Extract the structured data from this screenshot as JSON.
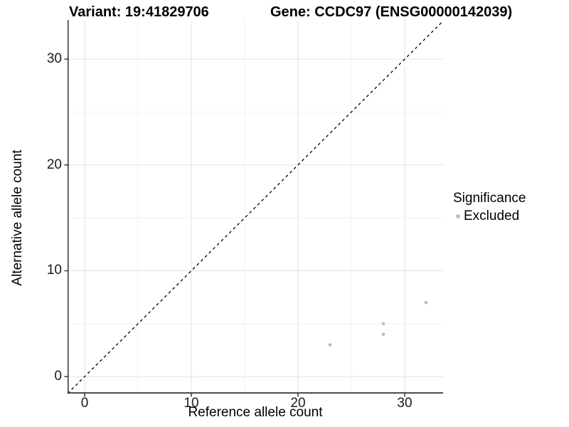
{
  "title": {
    "variant": "Variant: 19:41829706",
    "gene": "Gene: CCDC97 (ENSG00000142039)"
  },
  "chart_data": {
    "type": "scatter",
    "xlabel": "Reference allele count",
    "ylabel": "Alternative allele count",
    "xlim": [
      -1.6,
      33.6
    ],
    "ylim": [
      -1.6,
      33.7
    ],
    "x_ticks": [
      0,
      10,
      20,
      30
    ],
    "y_ticks": [
      0,
      10,
      20,
      30
    ],
    "x_minor_ticks": [
      5,
      15,
      25
    ],
    "y_minor_ticks": [
      5,
      15,
      25
    ],
    "grid": true,
    "identity_line": {
      "style": "dashed",
      "equation": "y = x",
      "color": "#000000"
    },
    "series": [
      {
        "name": "Excluded",
        "color": "#bdbdbd",
        "points": [
          [
            23,
            3
          ],
          [
            28,
            4
          ],
          [
            28,
            5
          ],
          [
            32,
            7
          ]
        ]
      }
    ],
    "legend": {
      "title": "Significance",
      "position": "right",
      "entries": [
        {
          "label": "Excluded",
          "color": "#bdbdbd"
        }
      ]
    }
  },
  "colors": {
    "point": "#bdbdbd",
    "grid_major": "#e3e3e3",
    "grid_minor": "#f1f1f1",
    "axis_line": "#333333",
    "identity_line": "#000000"
  }
}
